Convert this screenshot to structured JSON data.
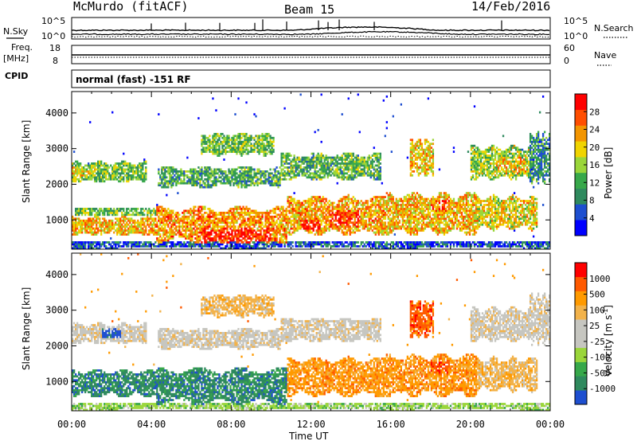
{
  "header": {
    "station": "McMurdo (fitACF)",
    "beam": "Beam 15",
    "date": "14/Feb/2016"
  },
  "panels": {
    "nsky_label": "N.Sky",
    "nsearch_label": "N.Search",
    "nsky_ticks": [
      "10^5",
      "10^0"
    ],
    "nsearch_ticks": [
      "10^5",
      "10^0"
    ],
    "freq_label": "Freq.",
    "freq_unit": "[MHz]",
    "freq_ticks": [
      "18",
      "8"
    ],
    "nave_label": "Nave",
    "nave_ticks": [
      "60",
      "0"
    ],
    "cpid_label": "CPID",
    "cpid_text": "normal (fast) -151 RF"
  },
  "colors": {
    "power": [
      "#0000ff",
      "#1e4fd0",
      "#2f8a5e",
      "#37a84a",
      "#9ad63a",
      "#f0d400",
      "#f39500",
      "#ff4e00",
      "#ff0000"
    ],
    "velocity": [
      "#ff0000",
      "#ff5a00",
      "#ff9a00",
      "#f2b24a",
      "#c6c6c0",
      "#c6c6c0",
      "#9ad63a",
      "#37a84a",
      "#2f8a5e",
      "#1e4fd0"
    ]
  },
  "chart_data": [
    {
      "type": "heatmap",
      "name": "power",
      "ylabel": "Slant Range [km]",
      "xlabel": "Time UT",
      "x_range_hours": [
        0,
        24
      ],
      "ylim": [
        180,
        4600
      ],
      "yticks": [
        "1000",
        "2000",
        "3000",
        "4000"
      ],
      "xticks": [
        "00:00",
        "04:00",
        "08:00",
        "12:00",
        "16:00",
        "20:00",
        "00:00"
      ],
      "colorbar_label": "Power [dB]",
      "colorbar_ticks": [
        "4",
        "8",
        "12",
        "16",
        "20",
        "24",
        "28"
      ],
      "colorbar_range": [
        0,
        30
      ]
    },
    {
      "type": "heatmap",
      "name": "velocity",
      "ylabel": "Slant Range [km]",
      "xlabel": "Time UT",
      "x_range_hours": [
        0,
        24
      ],
      "ylim": [
        180,
        4600
      ],
      "yticks": [
        "1000",
        "2000",
        "3000",
        "4000"
      ],
      "xticks": [
        "00:00",
        "04:00",
        "08:00",
        "12:00",
        "16:00",
        "20:00",
        "00:00"
      ],
      "colorbar_label": "Velocity [m s",
      "colorbar_label_sup": "-1",
      "colorbar_label_close": "]",
      "colorbar_ticks": [
        "1000",
        "500",
        "100",
        "25",
        "-25",
        "-100",
        "-500",
        "-1000"
      ]
    }
  ]
}
